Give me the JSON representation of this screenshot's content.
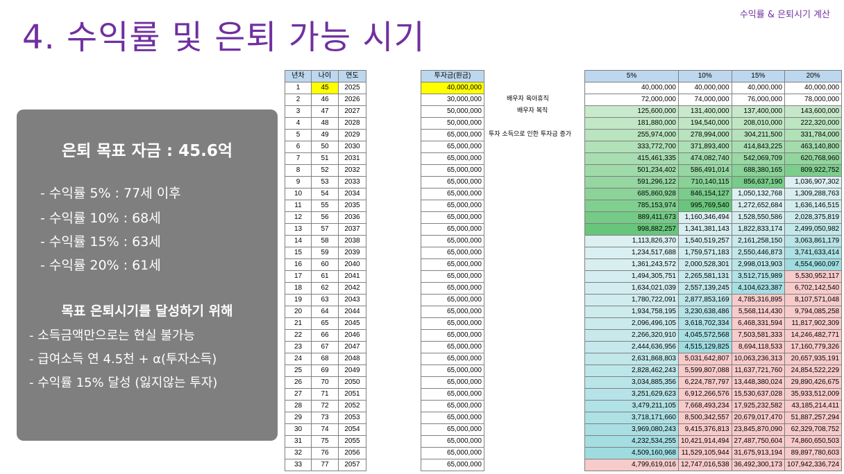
{
  "header": {
    "title": "4. 수익률 및 은퇴 가능 시기",
    "subtitle": "수익률 & 은퇴시기 계산"
  },
  "summary": {
    "goal": "은퇴 목표 자금 : 45.6억",
    "rates": [
      "- 수익률    5% : 77세 이후",
      "- 수익률 10% : 68세",
      "- 수익률 15% : 63세",
      "- 수익률 20% : 61세"
    ],
    "heading": "목표 은퇴시기를 달성하기 위해",
    "lines": [
      "- 소득금액만으로는 현실 불가능",
      "- 급여소득 연 4.5천 + α(투자소득)",
      "- 수익률 15% 달성 (잃지않는 투자)"
    ]
  },
  "table_headers": {
    "years": [
      "년차",
      "나이",
      "연도"
    ],
    "invest": "투자금(원금)",
    "returns": [
      "5%",
      "10%",
      "15%",
      "20%"
    ]
  },
  "notes": [
    "배우자 육아휴직",
    "배우자 복직",
    "투자 소득으로 인한 투자금 증가"
  ],
  "rows": [
    [
      1,
      45,
      2025,
      "40,000,000",
      "40,000,000",
      "40,000,000",
      "40,000,000",
      "40,000,000"
    ],
    [
      2,
      46,
      2026,
      "30,000,000",
      "72,000,000",
      "74,000,000",
      "76,000,000",
      "78,000,000"
    ],
    [
      3,
      47,
      2027,
      "50,000,000",
      "125,600,000",
      "131,400,000",
      "137,400,000",
      "143,600,000"
    ],
    [
      4,
      48,
      2028,
      "50,000,000",
      "181,880,000",
      "194,540,000",
      "208,010,000",
      "222,320,000"
    ],
    [
      5,
      49,
      2029,
      "65,000,000",
      "255,974,000",
      "278,994,000",
      "304,211,500",
      "331,784,000"
    ],
    [
      6,
      50,
      2030,
      "65,000,000",
      "333,772,700",
      "371,893,400",
      "414,843,225",
      "463,140,800"
    ],
    [
      7,
      51,
      2031,
      "65,000,000",
      "415,461,335",
      "474,082,740",
      "542,069,709",
      "620,768,960"
    ],
    [
      8,
      52,
      2032,
      "65,000,000",
      "501,234,402",
      "586,491,014",
      "688,380,165",
      "809,922,752"
    ],
    [
      9,
      53,
      2033,
      "65,000,000",
      "591,296,122",
      "710,140,115",
      "856,637,190",
      "1,036,907,302"
    ],
    [
      10,
      54,
      2034,
      "65,000,000",
      "685,860,928",
      "846,154,127",
      "1,050,132,768",
      "1,309,288,763"
    ],
    [
      11,
      55,
      2035,
      "65,000,000",
      "785,153,974",
      "995,769,540",
      "1,272,652,684",
      "1,636,146,515"
    ],
    [
      12,
      56,
      2036,
      "65,000,000",
      "889,411,673",
      "1,160,346,494",
      "1,528,550,586",
      "2,028,375,819"
    ],
    [
      13,
      57,
      2037,
      "65,000,000",
      "998,882,257",
      "1,341,381,143",
      "1,822,833,174",
      "2,499,050,982"
    ],
    [
      14,
      58,
      2038,
      "65,000,000",
      "1,113,826,370",
      "1,540,519,257",
      "2,161,258,150",
      "3,063,861,179"
    ],
    [
      15,
      59,
      2039,
      "65,000,000",
      "1,234,517,688",
      "1,759,571,183",
      "2,550,446,873",
      "3,741,633,414"
    ],
    [
      16,
      60,
      2040,
      "65,000,000",
      "1,361,243,572",
      "2,000,528,301",
      "2,998,013,903",
      "4,554,960,097"
    ],
    [
      17,
      61,
      2041,
      "65,000,000",
      "1,494,305,751",
      "2,265,581,131",
      "3,512,715,989",
      "5,530,952,117"
    ],
    [
      18,
      62,
      2042,
      "65,000,000",
      "1,634,021,039",
      "2,557,139,245",
      "4,104,623,387",
      "6,702,142,540"
    ],
    [
      19,
      63,
      2043,
      "65,000,000",
      "1,780,722,091",
      "2,877,853,169",
      "4,785,316,895",
      "8,107,571,048"
    ],
    [
      20,
      64,
      2044,
      "65,000,000",
      "1,934,758,195",
      "3,230,638,486",
      "5,568,114,430",
      "9,794,085,258"
    ],
    [
      21,
      65,
      2045,
      "65,000,000",
      "2,096,496,105",
      "3,618,702,334",
      "6,468,331,594",
      "11,817,902,309"
    ],
    [
      22,
      66,
      2046,
      "65,000,000",
      "2,266,320,910",
      "4,045,572,568",
      "7,503,581,333",
      "14,246,482,771"
    ],
    [
      23,
      67,
      2047,
      "65,000,000",
      "2,444,636,956",
      "4,515,129,825",
      "8,694,118,533",
      "17,160,779,326"
    ],
    [
      24,
      68,
      2048,
      "65,000,000",
      "2,631,868,803",
      "5,031,642,807",
      "10,063,236,313",
      "20,657,935,191"
    ],
    [
      25,
      69,
      2049,
      "65,000,000",
      "2,828,462,243",
      "5,599,807,088",
      "11,637,721,760",
      "24,854,522,229"
    ],
    [
      26,
      70,
      2050,
      "65,000,000",
      "3,034,885,356",
      "6,224,787,797",
      "13,448,380,024",
      "29,890,426,675"
    ],
    [
      27,
      71,
      2051,
      "65,000,000",
      "3,251,629,623",
      "6,912,266,576",
      "15,530,637,028",
      "35,933,512,009"
    ],
    [
      28,
      72,
      2052,
      "65,000,000",
      "3,479,211,105",
      "7,668,493,234",
      "17,925,232,582",
      "43,185,214,411"
    ],
    [
      29,
      73,
      2053,
      "65,000,000",
      "3,718,171,660",
      "8,500,342,557",
      "20,679,017,470",
      "51,887,257,294"
    ],
    [
      30,
      74,
      2054,
      "65,000,000",
      "3,969,080,243",
      "9,415,376,813",
      "23,845,870,090",
      "62,329,708,752"
    ],
    [
      31,
      75,
      2055,
      "65,000,000",
      "4,232,534,255",
      "10,421,914,494",
      "27,487,750,604",
      "74,860,650,503"
    ],
    [
      32,
      76,
      2056,
      "65,000,000",
      "4,509,160,968",
      "11,529,105,944",
      "31,675,913,194",
      "89,897,780,603"
    ],
    [
      33,
      77,
      2057,
      "65,000,000",
      "4,799,619,016",
      "12,747,016,538",
      "36,492,300,173",
      "107,942,336,724"
    ]
  ]
}
